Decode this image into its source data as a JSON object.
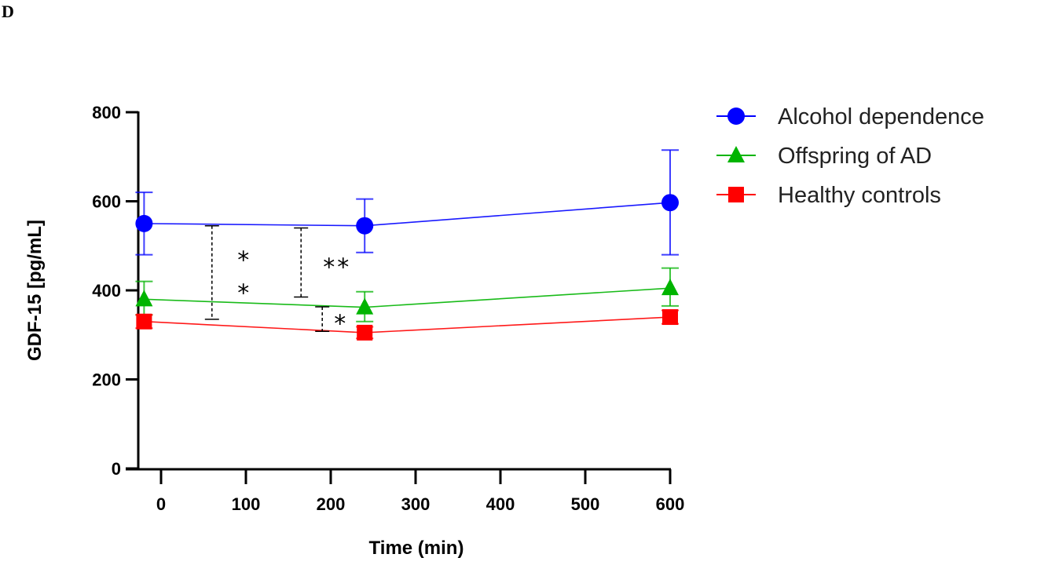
{
  "panel_label": "D",
  "chart_data": {
    "type": "line",
    "title": "",
    "xlabel": "Time (min)",
    "ylabel": "GDF-15 [pg/mL]",
    "xlim": [
      -30,
      600
    ],
    "ylim": [
      0,
      800
    ],
    "xticks": [
      0,
      100,
      200,
      300,
      400,
      500,
      600
    ],
    "yticks": [
      0,
      200,
      400,
      600,
      800
    ],
    "xtick_labels": [
      "0",
      "100",
      "200",
      "300",
      "400",
      "500",
      "600"
    ],
    "ytick_labels": [
      "0",
      "200",
      "400",
      "600",
      "800"
    ],
    "grid": false,
    "legend_position": "top-right outside",
    "series": [
      {
        "name": "Alcohol dependence",
        "color": "#0000ff",
        "marker": "circle",
        "x": [
          -20,
          240,
          600
        ],
        "y": [
          550,
          545,
          597
        ],
        "err_low": [
          480,
          485,
          480
        ],
        "err_high": [
          620,
          605,
          715
        ]
      },
      {
        "name": "Offspring of AD",
        "color": "#00b400",
        "marker": "triangle",
        "x": [
          -20,
          240,
          600
        ],
        "y": [
          380,
          362,
          405
        ],
        "err_low": [
          345,
          330,
          365
        ],
        "err_high": [
          420,
          397,
          450
        ]
      },
      {
        "name": "Healthy controls",
        "color": "#ff0000",
        "marker": "square",
        "x": [
          -20,
          240,
          600
        ],
        "y": [
          330,
          305,
          340
        ],
        "err_low": [
          315,
          292,
          325
        ],
        "err_high": [
          345,
          318,
          355
        ]
      }
    ],
    "annotations": [
      {
        "x": 60,
        "y_from": 335,
        "y_to": 545,
        "label": "**",
        "stacked": true
      },
      {
        "x": 165,
        "y_from": 385,
        "y_to": 540,
        "label": "**",
        "stacked": false
      },
      {
        "x": 190,
        "y_from": 308,
        "y_to": 363,
        "label": "*",
        "stacked": false
      }
    ]
  }
}
